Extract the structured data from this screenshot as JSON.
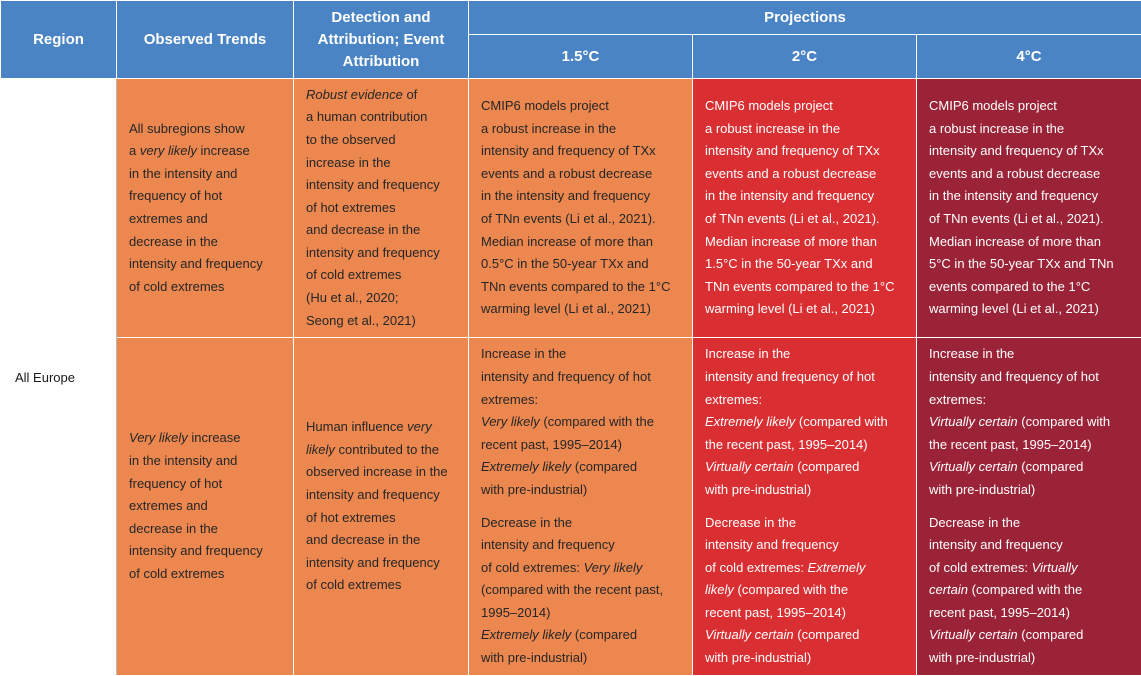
{
  "header": {
    "region": "Region",
    "observed": "Observed Trends",
    "detection": [
      "Detection and",
      "Attribution; Event",
      "Attribution"
    ],
    "projections": "Projections",
    "scenarios": [
      "1.5°C",
      "2°C",
      "4°C"
    ]
  },
  "region_label": "All Europe",
  "colors": {
    "header_blue": "#4a84c4",
    "orange": "#eb874f",
    "red": "#d92f33",
    "crimson": "#9b2338"
  },
  "rows": [
    {
      "observed": [
        [
          {
            "t": "All subregions show"
          }
        ],
        [
          {
            "t": "a "
          },
          {
            "t": "very likely",
            "i": true
          },
          {
            "t": " increase"
          }
        ],
        [
          {
            "t": "in the intensity and"
          }
        ],
        [
          {
            "t": "frequency of hot"
          }
        ],
        [
          {
            "t": "extremes and"
          }
        ],
        [
          {
            "t": "decrease in the"
          }
        ],
        [
          {
            "t": "intensity and frequency"
          }
        ],
        [
          {
            "t": "of cold extremes"
          }
        ]
      ],
      "detection": [
        [
          {
            "t": "Robust evidence",
            "i": true
          },
          {
            "t": " of"
          }
        ],
        [
          {
            "t": "a human contribution"
          }
        ],
        [
          {
            "t": "to the observed"
          }
        ],
        [
          {
            "t": "increase in the"
          }
        ],
        [
          {
            "t": "intensity and frequency"
          }
        ],
        [
          {
            "t": "of hot extremes"
          }
        ],
        [
          {
            "t": "and decrease in the"
          }
        ],
        [
          {
            "t": "intensity and frequency"
          }
        ],
        [
          {
            "t": "of cold extremes"
          }
        ],
        [
          {
            "t": "(Hu et al., 2020;"
          }
        ],
        [
          {
            "t": "Seong et al., 2021)"
          }
        ]
      ],
      "p15": [
        [
          {
            "t": "CMIP6 models project"
          }
        ],
        [
          {
            "t": "a robust increase in the"
          }
        ],
        [
          {
            "t": "intensity and frequency of TXx"
          }
        ],
        [
          {
            "t": "events and a robust decrease"
          }
        ],
        [
          {
            "t": "in the intensity and frequency"
          }
        ],
        [
          {
            "t": "of TNn events (Li et al., 2021)."
          }
        ],
        [
          {
            "t": "Median increase of more than"
          }
        ],
        [
          {
            "t": "0.5°C in the 50-year TXx and"
          }
        ],
        [
          {
            "t": "TNn events compared to the 1°C"
          }
        ],
        [
          {
            "t": "warming level (Li et al., 2021)"
          }
        ]
      ],
      "p2": [
        [
          {
            "t": "CMIP6 models project"
          }
        ],
        [
          {
            "t": "a robust increase in the"
          }
        ],
        [
          {
            "t": "intensity and frequency of TXx"
          }
        ],
        [
          {
            "t": "events and a robust decrease"
          }
        ],
        [
          {
            "t": "in the intensity and frequency"
          }
        ],
        [
          {
            "t": "of TNn events (Li et al., 2021)."
          }
        ],
        [
          {
            "t": "Median increase of more than"
          }
        ],
        [
          {
            "t": "1.5°C in the 50-year TXx and"
          }
        ],
        [
          {
            "t": "TNn events compared to the 1°C"
          }
        ],
        [
          {
            "t": "warming level (Li et al., 2021)"
          }
        ]
      ],
      "p4": [
        [
          {
            "t": "CMIP6 models project"
          }
        ],
        [
          {
            "t": "a robust increase in the"
          }
        ],
        [
          {
            "t": "intensity and frequency of TXx"
          }
        ],
        [
          {
            "t": "events and a robust decrease"
          }
        ],
        [
          {
            "t": "in the intensity and frequency"
          }
        ],
        [
          {
            "t": "of TNn events (Li et al., 2021)."
          }
        ],
        [
          {
            "t": "Median increase of more than"
          }
        ],
        [
          {
            "t": "5°C in the 50-year TXx and TNn"
          }
        ],
        [
          {
            "t": "events compared to the 1°C"
          }
        ],
        [
          {
            "t": "warming level (Li et al., 2021)"
          }
        ]
      ]
    },
    {
      "observed": [
        [
          {
            "t": "Very likely",
            "i": true
          },
          {
            "t": " increase"
          }
        ],
        [
          {
            "t": "in the intensity and"
          }
        ],
        [
          {
            "t": "frequency of hot"
          }
        ],
        [
          {
            "t": "extremes and"
          }
        ],
        [
          {
            "t": "decrease in the"
          }
        ],
        [
          {
            "t": "intensity and frequency"
          }
        ],
        [
          {
            "t": "of cold extremes"
          }
        ]
      ],
      "detection": [
        [
          {
            "t": "Human influence "
          },
          {
            "t": "very",
            "i": true
          }
        ],
        [
          {
            "t": "likely",
            "i": true
          },
          {
            "t": " contributed to the"
          }
        ],
        [
          {
            "t": "observed increase in the"
          }
        ],
        [
          {
            "t": "intensity and frequency"
          }
        ],
        [
          {
            "t": "of hot extremes"
          }
        ],
        [
          {
            "t": "and decrease in the"
          }
        ],
        [
          {
            "t": "intensity and frequency"
          }
        ],
        [
          {
            "t": "of cold extremes"
          }
        ]
      ],
      "p15": [
        [
          {
            "t": "Increase in the"
          }
        ],
        [
          {
            "t": "intensity and frequency of hot"
          }
        ],
        [
          {
            "t": "extremes:"
          }
        ],
        [
          {
            "t": "Very likely",
            "i": true
          },
          {
            "t": " (compared with the"
          }
        ],
        [
          {
            "t": "recent past, 1995–2014)"
          }
        ],
        [
          {
            "t": "Extremely likely",
            "i": true
          },
          {
            "t": " (compared"
          }
        ],
        [
          {
            "t": "with pre-industrial)"
          }
        ],
        "gap",
        [
          {
            "t": "Decrease in the"
          }
        ],
        [
          {
            "t": "intensity and frequency"
          }
        ],
        [
          {
            "t": "of cold extremes: "
          },
          {
            "t": "Very likely",
            "i": true
          }
        ],
        [
          {
            "t": "(compared with the recent past,"
          }
        ],
        [
          {
            "t": "1995–2014)"
          }
        ],
        [
          {
            "t": "Extremely likely",
            "i": true
          },
          {
            "t": " (compared"
          }
        ],
        [
          {
            "t": "with pre-industrial)"
          }
        ]
      ],
      "p2": [
        [
          {
            "t": "Increase in the"
          }
        ],
        [
          {
            "t": "intensity and frequency of hot"
          }
        ],
        [
          {
            "t": "extremes:"
          }
        ],
        [
          {
            "t": "Extremely likely",
            "i": true
          },
          {
            "t": " (compared with"
          }
        ],
        [
          {
            "t": "the recent past, 1995–2014)"
          }
        ],
        [
          {
            "t": "Virtually certain",
            "i": true
          },
          {
            "t": " (compared"
          }
        ],
        [
          {
            "t": "with pre-industrial)"
          }
        ],
        "gap",
        [
          {
            "t": "Decrease in the"
          }
        ],
        [
          {
            "t": "intensity and frequency"
          }
        ],
        [
          {
            "t": "of cold extremes: "
          },
          {
            "t": "Extremely",
            "i": true
          }
        ],
        [
          {
            "t": "likely",
            "i": true
          },
          {
            "t": " (compared with the"
          }
        ],
        [
          {
            "t": "recent past, 1995–2014)"
          }
        ],
        [
          {
            "t": "Virtually certain",
            "i": true
          },
          {
            "t": " (compared"
          }
        ],
        [
          {
            "t": "with pre-industrial)"
          }
        ]
      ],
      "p4": [
        [
          {
            "t": "Increase in the"
          }
        ],
        [
          {
            "t": "intensity and frequency of hot"
          }
        ],
        [
          {
            "t": "extremes:"
          }
        ],
        [
          {
            "t": "Virtually certain",
            "i": true
          },
          {
            "t": " (compared with"
          }
        ],
        [
          {
            "t": "the recent past, 1995–2014)"
          }
        ],
        [
          {
            "t": "Virtually certain",
            "i": true
          },
          {
            "t": " (compared"
          }
        ],
        [
          {
            "t": "with pre-industrial)"
          }
        ],
        "gap",
        [
          {
            "t": "Decrease in the"
          }
        ],
        [
          {
            "t": "intensity and frequency"
          }
        ],
        [
          {
            "t": "of cold extremes: "
          },
          {
            "t": "Virtually",
            "i": true
          }
        ],
        [
          {
            "t": "certain",
            "i": true
          },
          {
            "t": " (compared with the"
          }
        ],
        [
          {
            "t": "recent past, 1995–2014)"
          }
        ],
        [
          {
            "t": "Virtually certain",
            "i": true
          },
          {
            "t": " (compared"
          }
        ],
        [
          {
            "t": "with pre-industrial)"
          }
        ]
      ]
    }
  ]
}
